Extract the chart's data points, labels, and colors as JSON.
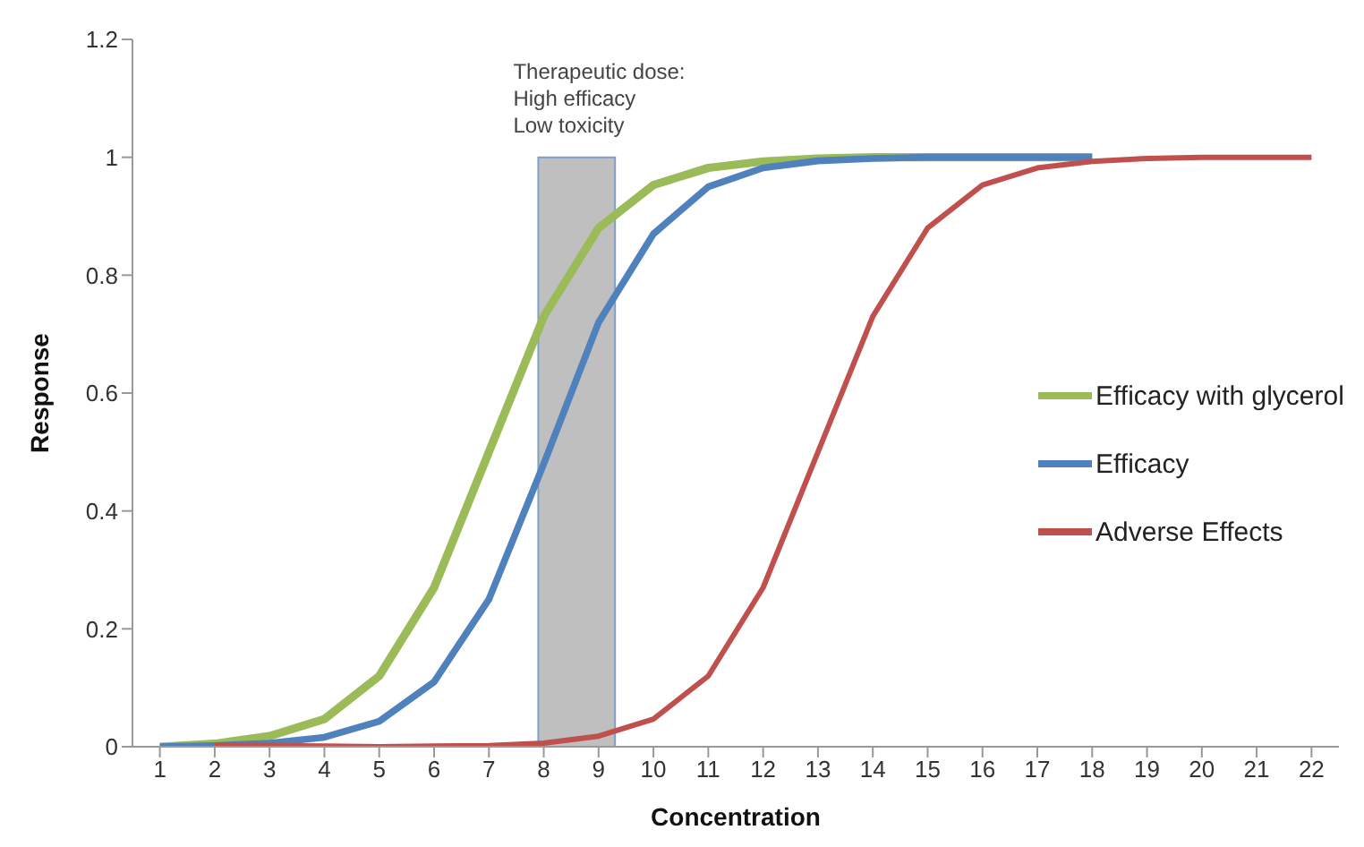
{
  "chart_data": {
    "type": "line",
    "xlabel": "Concentration",
    "ylabel": "Response",
    "x": [
      1,
      2,
      3,
      4,
      5,
      6,
      7,
      8,
      9,
      10,
      11,
      12,
      13,
      14,
      15,
      16,
      17,
      18,
      19,
      20,
      21,
      22
    ],
    "xlim": [
      0.5,
      22.5
    ],
    "xticks": [
      1,
      2,
      3,
      4,
      5,
      6,
      7,
      8,
      9,
      10,
      11,
      12,
      13,
      14,
      15,
      16,
      17,
      18,
      19,
      20,
      21,
      22
    ],
    "ylim": [
      0,
      1.2
    ],
    "yticks": [
      0,
      0.2,
      0.4,
      0.6,
      0.8,
      1,
      1.2
    ],
    "series": [
      {
        "name": "Efficacy with glycerol",
        "color": "#9bbb59",
        "values": [
          0,
          0.005,
          0.018,
          0.047,
          0.12,
          0.27,
          0.5,
          0.73,
          0.88,
          0.953,
          0.982,
          0.993,
          0.998,
          1,
          1,
          1,
          1,
          1,
          null,
          null,
          null,
          null
        ]
      },
      {
        "name": "Efficacy",
        "color": "#4f81bd",
        "values": [
          0,
          0.002,
          0.006,
          0.016,
          0.043,
          0.11,
          0.25,
          0.48,
          0.72,
          0.87,
          0.95,
          0.982,
          0.994,
          0.998,
          1,
          1,
          1,
          1,
          null,
          null,
          null,
          null
        ]
      },
      {
        "name": "Adverse Effects",
        "color": "#c0504d",
        "values": [
          null,
          0.003,
          0.002,
          0.001,
          0,
          0.001,
          0.002,
          0.006,
          0.018,
          0.047,
          0.12,
          0.27,
          0.5,
          0.73,
          0.88,
          0.953,
          0.982,
          0.993,
          0.998,
          1,
          1,
          1
        ]
      }
    ],
    "bands": [
      {
        "axis": "x",
        "from": 7.9,
        "to": 9.3,
        "label": "Therapeutic dose:\nHigh efficacy\nLow toxicity",
        "color": "#bfbfbf"
      }
    ],
    "grid": false,
    "legend": "right",
    "marker": "none",
    "line_style": "solid"
  }
}
